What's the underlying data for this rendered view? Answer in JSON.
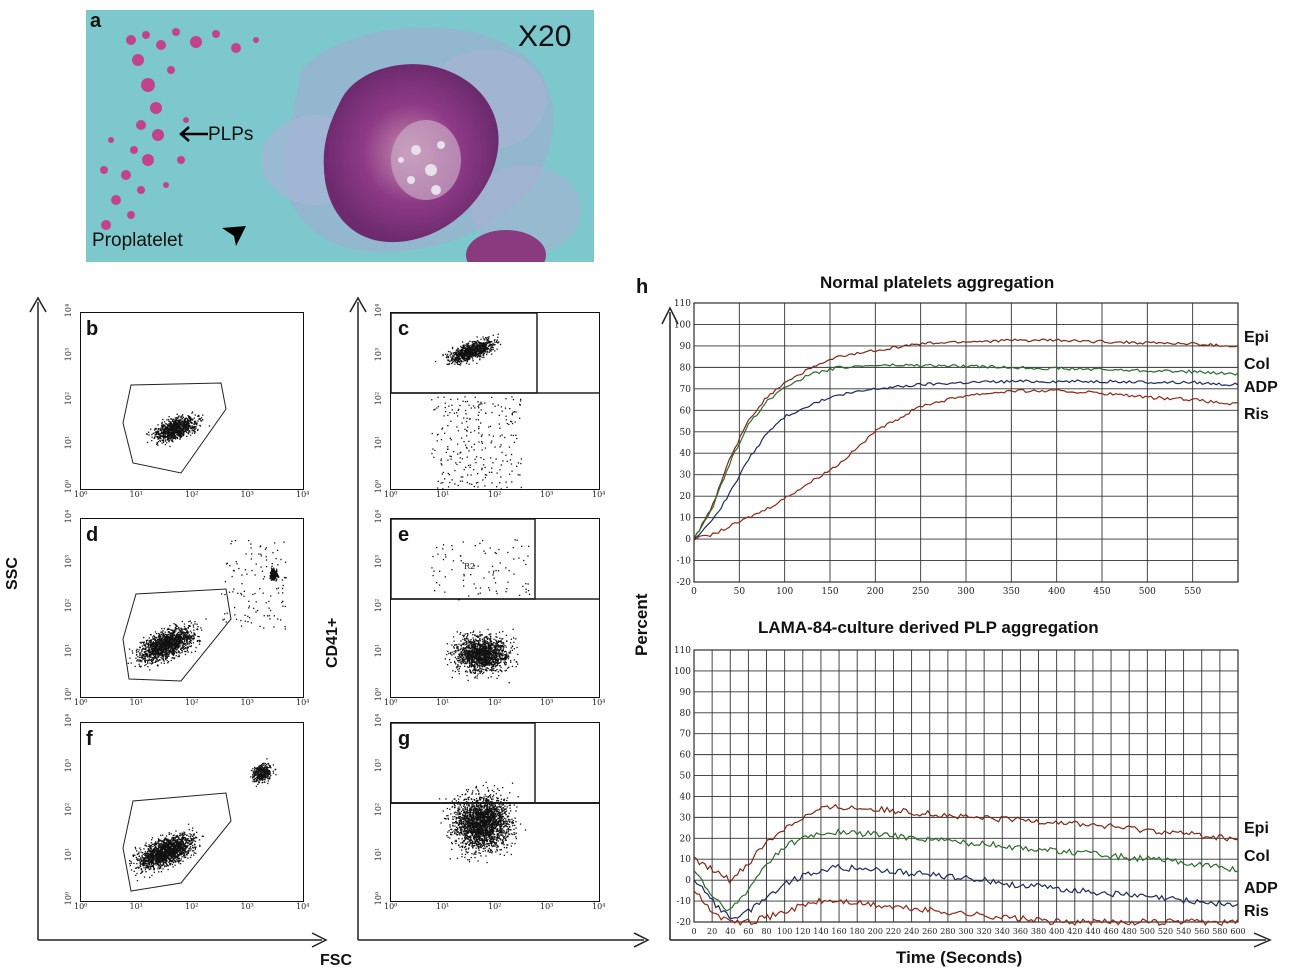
{
  "micrograph": {
    "panel_label": "a",
    "magnification": "X20",
    "plps_label": "PLPs",
    "proplatelet_label": "Proplatelet"
  },
  "flow": {
    "ssc_label": "SSC",
    "fsc_label": "FSC",
    "cd41_label": "CD41+",
    "decade_labels": [
      "10⁰",
      "10¹",
      "10²",
      "10³",
      "10⁴"
    ],
    "panels": [
      {
        "letter": "b"
      },
      {
        "letter": "c"
      },
      {
        "letter": "d"
      },
      {
        "letter": "e",
        "gate_label": "R2"
      },
      {
        "letter": "f"
      },
      {
        "letter": "g"
      }
    ]
  },
  "aggregation": {
    "panel_label": "h",
    "y_axis_label": "Percent",
    "x_axis_label": "Time (Seconds)",
    "colors": {
      "Epi": "#7a2a1a",
      "Col": "#2f6b2f",
      "ADP": "#1e2c5a",
      "Ris": "#8b2a1a"
    }
  },
  "chart_data": [
    {
      "type": "line",
      "title": "Normal platelets aggregation",
      "xlim": [
        0,
        600
      ],
      "ylim": [
        -20,
        110
      ],
      "y_ticks": [
        "110",
        "100",
        "90",
        "80",
        "70",
        "60",
        "50",
        "40",
        "30",
        "20",
        "10",
        "0",
        "-10",
        "-20"
      ],
      "x_ticks": [
        "0",
        "50",
        "100",
        "150",
        "200",
        "250",
        "300",
        "350",
        "400",
        "450",
        "500",
        "550"
      ],
      "legend": [
        "Epi",
        "Col",
        "ADP",
        "Ris"
      ],
      "x": [
        0,
        20,
        40,
        60,
        80,
        100,
        130,
        160,
        200,
        250,
        300,
        350,
        400,
        450,
        500,
        550,
        590
      ],
      "series": [
        {
          "name": "Epi",
          "values": [
            0,
            15,
            38,
            55,
            66,
            73,
            80,
            85,
            88,
            91,
            92,
            92.5,
            92.5,
            92,
            91.5,
            91,
            90
          ]
        },
        {
          "name": "Col",
          "values": [
            0,
            14,
            36,
            53,
            64,
            71,
            77,
            80,
            81,
            81,
            80.5,
            80,
            79.5,
            79,
            78.5,
            78,
            77
          ]
        },
        {
          "name": "ADP",
          "values": [
            0,
            8,
            22,
            37,
            49,
            57,
            63,
            67,
            70,
            72,
            73,
            73.5,
            73.5,
            73.5,
            73,
            73,
            72
          ]
        },
        {
          "name": "Ris",
          "values": [
            0,
            2,
            6,
            10,
            14,
            19,
            27,
            35,
            50,
            62,
            67,
            69,
            69,
            68,
            66,
            65,
            63
          ]
        }
      ]
    },
    {
      "type": "line",
      "title": "LAMA-84-culture derived PLP aggregation",
      "xlim": [
        0,
        600
      ],
      "ylim": [
        -20,
        110
      ],
      "y_ticks": [
        "110",
        "100",
        "90",
        "80",
        "70",
        "60",
        "50",
        "40",
        "30",
        "20",
        "10",
        "0",
        "-10",
        "-20"
      ],
      "x_ticks": [
        "0",
        "20",
        "40",
        "60",
        "80",
        "100",
        "120",
        "140",
        "160",
        "180",
        "200",
        "220",
        "240",
        "260",
        "280",
        "300",
        "320",
        "340",
        "360",
        "380",
        "400",
        "420",
        "440",
        "460",
        "480",
        "500",
        "520",
        "540",
        "560",
        "580",
        "600"
      ],
      "legend": [
        "Epi",
        "Col",
        "ADP",
        "Ris"
      ],
      "x": [
        0,
        20,
        40,
        60,
        80,
        100,
        120,
        140,
        160,
        200,
        250,
        300,
        350,
        400,
        450,
        500,
        550,
        600
      ],
      "series": [
        {
          "name": "Epi",
          "values": [
            10,
            5,
            0,
            8,
            18,
            25,
            30,
            34,
            35,
            34,
            32,
            30,
            29,
            28,
            26,
            24,
            22,
            19
          ]
        },
        {
          "name": "Col",
          "values": [
            5,
            -8,
            -15,
            -5,
            8,
            16,
            20,
            22,
            23,
            22,
            20,
            18,
            16,
            14,
            12,
            10,
            8,
            5
          ]
        },
        {
          "name": "ADP",
          "values": [
            0,
            -10,
            -18,
            -15,
            -8,
            -2,
            2,
            5,
            6,
            5,
            3,
            1,
            -2,
            -4,
            -6,
            -8,
            -10,
            -12
          ]
        },
        {
          "name": "Ris",
          "values": [
            -5,
            -15,
            -20,
            -20,
            -18,
            -15,
            -12,
            -10,
            -10,
            -12,
            -14,
            -16,
            -18,
            -20,
            -20,
            -20,
            -20,
            -20
          ]
        }
      ]
    }
  ]
}
